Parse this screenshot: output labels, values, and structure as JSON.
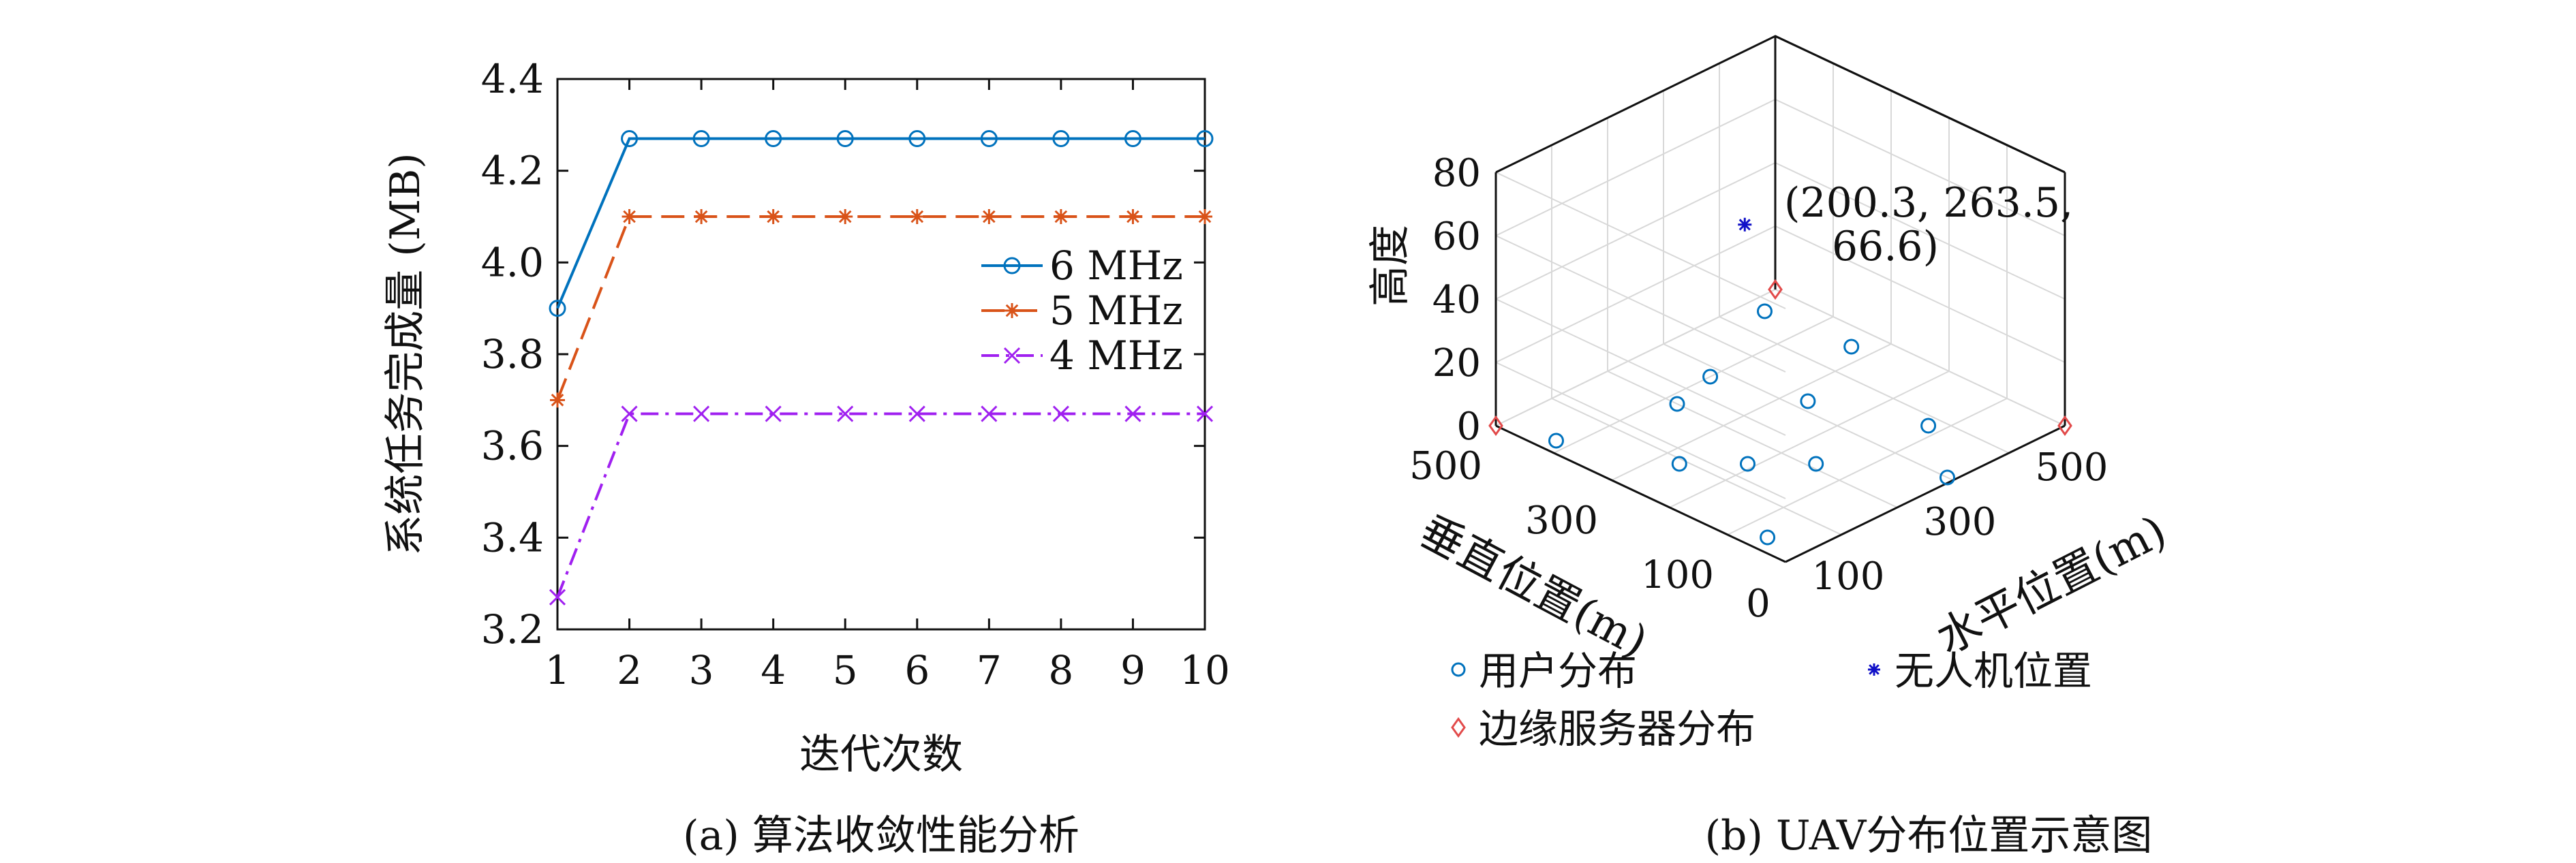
{
  "chart_data": [
    {
      "type": "line",
      "ylabel": "系统任务完成量 (MB)",
      "xlabel": "迭代次数",
      "caption": "(a) 算法收敛性能分析",
      "x": [
        1,
        2,
        3,
        4,
        5,
        6,
        7,
        8,
        9,
        10
      ],
      "xlim": [
        1,
        10
      ],
      "ylim": [
        3.2,
        4.4
      ],
      "yticks": [
        3.2,
        3.4,
        3.6,
        3.8,
        4.0,
        4.2,
        4.4
      ],
      "ytick_labels": [
        "3.2",
        "3.4",
        "3.6",
        "3.8",
        "4.0",
        "4.2",
        "4.4"
      ],
      "xtick_labels": [
        "1",
        "2",
        "3",
        "4",
        "5",
        "6",
        "7",
        "8",
        "9",
        "10"
      ],
      "legend_position": "center-right",
      "series": [
        {
          "name": "6 MHz",
          "color": "#0072BD",
          "marker": "circle",
          "dash": "solid",
          "values": [
            3.9,
            4.27,
            4.27,
            4.27,
            4.27,
            4.27,
            4.27,
            4.27,
            4.27,
            4.27
          ]
        },
        {
          "name": "5 MHz",
          "color": "#D95319",
          "marker": "asterisk",
          "dash": "dashed",
          "values": [
            3.7,
            4.1,
            4.1,
            4.1,
            4.1,
            4.1,
            4.1,
            4.1,
            4.1,
            4.1
          ]
        },
        {
          "name": "4 MHz",
          "color": "#A020F0",
          "marker": "cross",
          "dash": "dashdot",
          "values": [
            3.27,
            3.67,
            3.67,
            3.67,
            3.67,
            3.67,
            3.67,
            3.67,
            3.67,
            3.67
          ]
        }
      ]
    },
    {
      "type": "scatter",
      "caption": "(b) UAV分布位置示意图",
      "zlabel": "高度",
      "xlabel": "水平位置(m)",
      "ylabel": "垂直位置(m)",
      "xlim": [
        0,
        500
      ],
      "ylim": [
        0,
        500
      ],
      "zlim": [
        0,
        80
      ],
      "ground_ticks": [
        0,
        100,
        200,
        300,
        400,
        500
      ],
      "xtick_labels": [
        "0",
        "100",
        "300",
        "500"
      ],
      "ytick_labels": [
        "100",
        "300",
        "500"
      ],
      "ztick_labels": [
        "0",
        "20",
        "40",
        "60",
        "80"
      ],
      "legend_position": "bottom",
      "series": [
        {
          "name": "用户分布",
          "color": "#0072BD",
          "marker": "circle",
          "points": [
            [
              30,
              60,
              0
            ],
            [
              90,
              270,
              0
            ],
            [
              150,
              210,
              0
            ],
            [
              200,
              380,
              0
            ],
            [
              210,
              150,
              0
            ],
            [
              320,
              270,
              0
            ],
            [
              380,
              120,
              0
            ],
            [
              450,
              470,
              0
            ],
            [
              460,
              330,
              0
            ],
            [
              280,
              400,
              0
            ],
            [
              300,
              10,
              0
            ],
            [
              25,
              420,
              0
            ]
          ]
        },
        {
          "name": "边缘服务器分布",
          "color": "#E24A4A",
          "marker": "diamond",
          "points": [
            [
              0,
              500,
              0
            ],
            [
              500,
              0,
              0
            ],
            [
              500,
              500,
              0
            ]
          ]
        },
        {
          "name": "无人机位置",
          "color": "#1010C8",
          "marker": "asterisk",
          "points": [
            [
              200.3,
              263.5,
              66.6
            ]
          ]
        }
      ],
      "annotation": {
        "line1": "(200.3, 263.5,",
        "line2": "66.6)"
      }
    }
  ]
}
